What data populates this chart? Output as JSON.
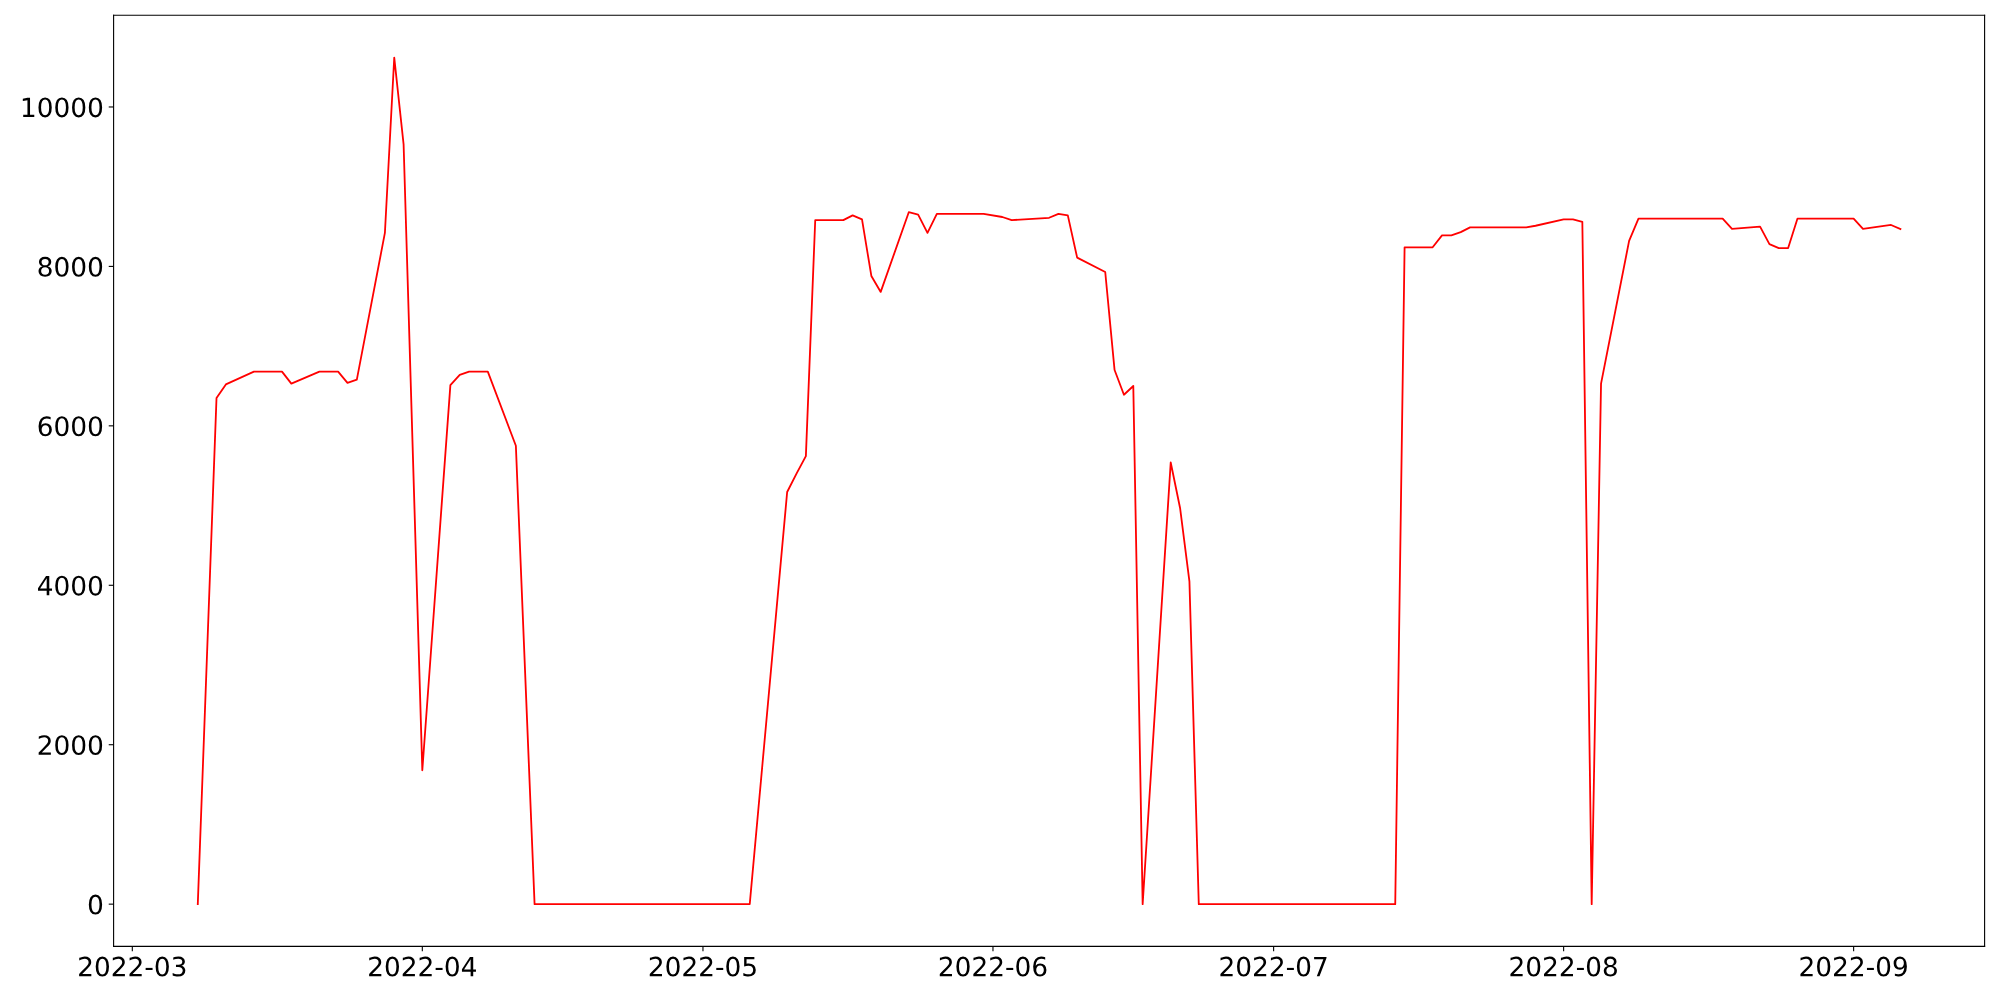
{
  "chart_data": {
    "type": "line",
    "grid": false,
    "marker": "none",
    "line_style": "solid",
    "xlim": [
      "2022-02-27",
      "2022-09-15"
    ],
    "xticks": [
      {
        "value": "2022-03-01",
        "label": "2022-03"
      },
      {
        "value": "2022-04-01",
        "label": "2022-04"
      },
      {
        "value": "2022-05-01",
        "label": "2022-05"
      },
      {
        "value": "2022-06-01",
        "label": "2022-06"
      },
      {
        "value": "2022-07-01",
        "label": "2022-07"
      },
      {
        "value": "2022-08-01",
        "label": "2022-08"
      },
      {
        "value": "2022-09-01",
        "label": "2022-09"
      }
    ],
    "ylim": [
      -530,
      11150
    ],
    "yticks": [
      0,
      2000,
      4000,
      6000,
      8000,
      10000
    ],
    "series": [
      {
        "color": "#ff0000",
        "x": [
          "2022-03-08",
          "2022-03-10",
          "2022-03-11",
          "2022-03-14",
          "2022-03-17",
          "2022-03-18",
          "2022-03-21",
          "2022-03-23",
          "2022-03-24",
          "2022-03-25",
          "2022-03-28",
          "2022-03-29",
          "2022-03-30",
          "2022-04-01",
          "2022-04-04",
          "2022-04-05",
          "2022-04-06",
          "2022-04-08",
          "2022-04-11",
          "2022-04-13",
          "2022-05-06",
          "2022-05-10",
          "2022-05-11",
          "2022-05-12",
          "2022-05-13",
          "2022-05-16",
          "2022-05-17",
          "2022-05-18",
          "2022-05-19",
          "2022-05-20",
          "2022-05-23",
          "2022-05-24",
          "2022-05-25",
          "2022-05-26",
          "2022-05-31",
          "2022-06-02",
          "2022-06-03",
          "2022-06-07",
          "2022-06-08",
          "2022-06-09",
          "2022-06-10",
          "2022-06-13",
          "2022-06-14",
          "2022-06-15",
          "2022-06-16",
          "2022-06-17",
          "2022-06-20",
          "2022-06-21",
          "2022-06-22",
          "2022-06-23",
          "2022-07-14",
          "2022-07-15",
          "2022-07-18",
          "2022-07-19",
          "2022-07-20",
          "2022-07-21",
          "2022-07-22",
          "2022-07-28",
          "2022-07-29",
          "2022-08-01",
          "2022-08-02",
          "2022-08-03",
          "2022-08-04",
          "2022-08-05",
          "2022-08-08",
          "2022-08-09",
          "2022-08-18",
          "2022-08-19",
          "2022-08-22",
          "2022-08-23",
          "2022-08-24",
          "2022-08-25",
          "2022-08-26",
          "2022-09-01",
          "2022-09-02",
          "2022-09-05",
          "2022-09-06"
        ],
        "values": [
          0,
          6350,
          6520,
          6680,
          6680,
          6530,
          6680,
          6680,
          6540,
          6580,
          8420,
          10620,
          9530,
          1680,
          6510,
          6640,
          6680,
          6680,
          5750,
          0,
          0,
          5170,
          5400,
          5620,
          8580,
          8580,
          8640,
          8590,
          7880,
          7680,
          8680,
          8650,
          8420,
          8660,
          8660,
          8620,
          8580,
          8610,
          8660,
          8640,
          8110,
          7930,
          6700,
          6390,
          6500,
          0,
          5540,
          4970,
          4050,
          0,
          0,
          8240,
          8240,
          8390,
          8390,
          8430,
          8490,
          8490,
          8510,
          8590,
          8590,
          8560,
          0,
          6530,
          8320,
          8600,
          8600,
          8470,
          8500,
          8280,
          8230,
          8230,
          8600,
          8600,
          8470,
          8520,
          8470
        ]
      }
    ]
  }
}
